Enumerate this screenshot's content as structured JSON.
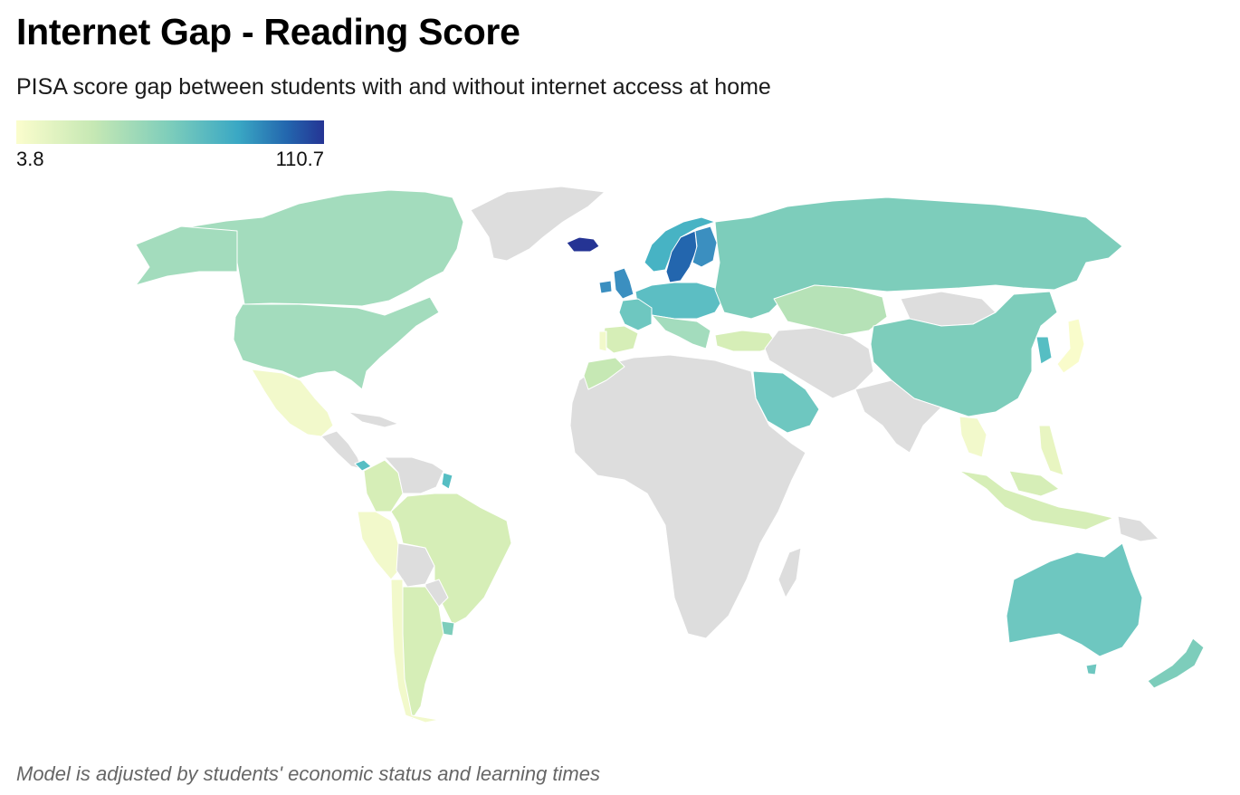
{
  "title": "Internet Gap - Reading Score",
  "subtitle": "PISA score gap between students with and without internet access at home",
  "legend": {
    "min": "3.8",
    "max": "110.7",
    "scale_colors": [
      "#fbfdcd",
      "#c6e8b4",
      "#7dcdbb",
      "#3aa8c4",
      "#2366ae",
      "#253494"
    ],
    "no_data_color": "#dddddd"
  },
  "footnote": "Model is adjusted by students' economic status and learning times",
  "colors": {
    "ocean": "#ffffff",
    "border": "#ffffff"
  }
}
